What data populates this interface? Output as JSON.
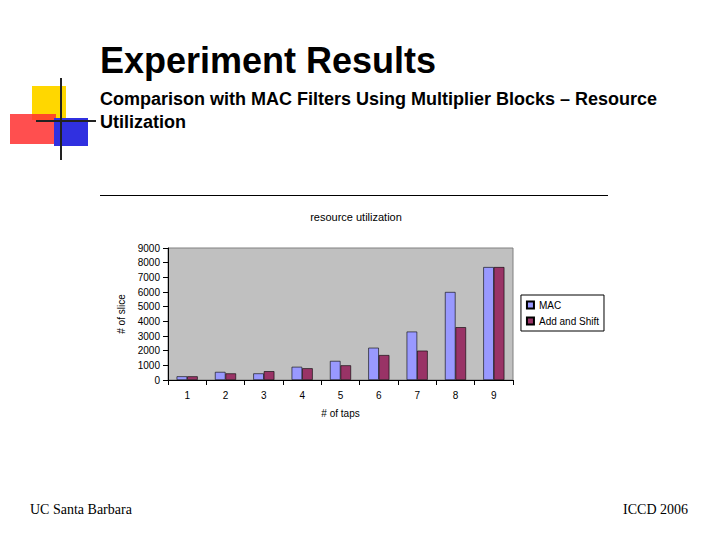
{
  "slide": {
    "title": "Experiment Results",
    "subtitle": "Comparison with MAC Filters Using Multiplier Blocks – Resource Utilization",
    "footer_left": "UC Santa Barbara",
    "footer_right": "ICCD 2006"
  },
  "chart_data": {
    "type": "bar",
    "title": "resource utilization",
    "x_label": "# of taps",
    "y_label": "# of slice",
    "categories": [
      "1",
      "2",
      "3",
      "4",
      "5",
      "6",
      "7",
      "8",
      "9"
    ],
    "series": [
      {
        "name": "MAC",
        "color": "#9999ff",
        "values": [
          250,
          550,
          450,
          900,
          1300,
          2200,
          3300,
          6000,
          7700
        ]
      },
      {
        "name": "Add and Shift",
        "color": "#993366",
        "values": [
          250,
          450,
          600,
          800,
          1000,
          1700,
          2000,
          3600,
          7700
        ]
      }
    ],
    "ylim": [
      0,
      9000
    ],
    "yticks": [
      0,
      1000,
      2000,
      3000,
      4000,
      5000,
      6000,
      7000,
      8000,
      9000
    ],
    "grid": false,
    "legend": "right"
  }
}
